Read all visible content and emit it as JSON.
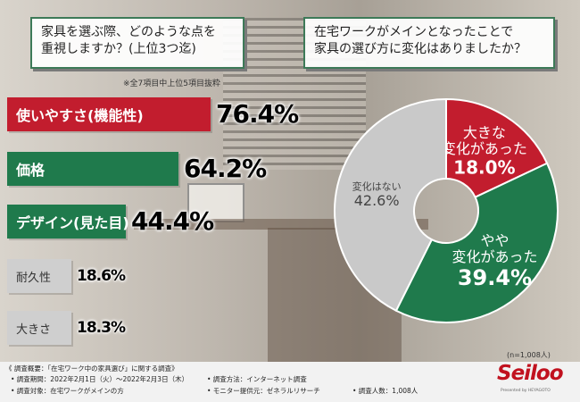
{
  "questions": {
    "left": "家具を選ぶ際、どのような点を\n重視しますか？(上位3つ迄)",
    "right": "在宅ワークがメインとなったことで\n家具の選び方に変化はありましたか？"
  },
  "note_left": "※全7項目中上位5項目抜粋",
  "colors": {
    "red": "#c21d2e",
    "green": "#1f7a4c",
    "gray": "#cfcfcf"
  },
  "chart_data": [
    {
      "type": "bar",
      "orientation": "horizontal",
      "categories": [
        "使いやすさ(機能性)",
        "価格",
        "デザイン(見た目)",
        "耐久性",
        "大きさ"
      ],
      "values": [
        76.4,
        64.2,
        44.4,
        18.6,
        18.3
      ],
      "value_labels": [
        "76.4%",
        "64.2%",
        "44.4%",
        "18.6%",
        "18.3%"
      ],
      "bar_colors": [
        "#c21d2e",
        "#1f7a4c",
        "#1f7a4c",
        "#cfcfcf",
        "#cfcfcf"
      ]
    },
    {
      "type": "pie",
      "categories": [
        "大きな変化があった",
        "やや変化があった",
        "変化はない"
      ],
      "label_lines": [
        [
          "大きな",
          "変化があった"
        ],
        [
          "やや",
          "変化があった"
        ],
        [
          "変化はない"
        ]
      ],
      "values": [
        18.0,
        39.4,
        42.6
      ],
      "value_labels": [
        "18.0%",
        "39.4%",
        "42.6%"
      ],
      "slice_colors": [
        "#c21d2e",
        "#1f7a4c",
        "#c9c9c9"
      ],
      "note": "(n=1,008人)"
    }
  ],
  "footer": {
    "line1": "《 調査概要：「在宅ワーク中の家具選び」に関する調査》",
    "period": "• 調査期間：2022年2月1日（火）〜2022年2月3日（木）",
    "method": "• 調査方法：インターネット調査",
    "target": "• 調査対象：在宅ワークがメインの方",
    "provider": "• モニター提供元：ゼネラルリサーチ",
    "count": "• 調査人数：1,008人"
  },
  "logo": {
    "text": "Seiloo",
    "sub": "Presented by HEYAGOTO"
  }
}
